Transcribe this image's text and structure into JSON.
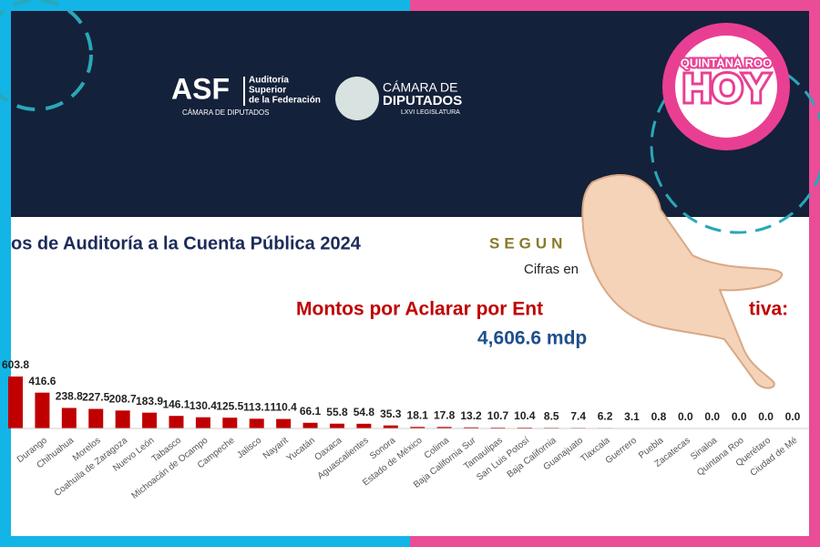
{
  "header": {
    "asf": "ASF",
    "asf_name": [
      "Auditoría",
      "Superior",
      "de la Federación"
    ],
    "asf_sub": "CÁMARA DE DIPUTADOS",
    "camara": [
      "CÁMARA DE",
      "DIPUTADOS"
    ],
    "legislatura": "LXVI LEGISLATURA"
  },
  "brand": {
    "line1": "QUINTANA ROO",
    "line2": "HOY"
  },
  "chart_data": {
    "type": "bar",
    "title": "os de Auditoría a la Cuenta Pública 2024",
    "title_tail": "SEGUN",
    "subtitle": "Cifras en",
    "heading": "Montos por Aclarar por Ent",
    "heading_tail": "tiva:",
    "total": "4,606.6 mdp",
    "categories": [
      null,
      "Durango",
      "Chihuahua",
      "Morelos",
      "Coahuila de Zaragoza",
      "Nuevo León",
      "Tabasco",
      "Michoacán de Ocampo",
      "Campeche",
      "Jalisco",
      "Nayarit",
      "Yucatán",
      "Oaxaca",
      "Aguascalientes",
      "Sonora",
      "Estado de México",
      "Colima",
      "Baja California Sur",
      "Tamaulipas",
      "San Luis Potosí",
      "Baja California",
      "Guanajuato",
      "Tlaxcala",
      "Guerrero",
      "Puebla",
      "Zacatecas",
      "Sinaloa",
      "Quintana Roo",
      "Querétaro",
      "Ciudad de Mé"
    ],
    "values": [
      603.8,
      416.6,
      238.8,
      227.5,
      208.7,
      183.9,
      146.1,
      130.4,
      125.5,
      113.1,
      110.4,
      66.1,
      55.8,
      54.8,
      35.3,
      18.1,
      17.8,
      13.2,
      10.7,
      10.4,
      8.5,
      7.4,
      6.2,
      3.1,
      0.8,
      0.0,
      0.0,
      0.0,
      0.0,
      0.0
    ],
    "value_labels": [
      "603.8",
      "416.6",
      "238.8",
      "227.5",
      "208.7",
      "183.9",
      "146.1",
      "130.4",
      "125.5",
      "113.1",
      "110.4",
      "66.1",
      "55.8",
      "54.8",
      "35.3",
      "18.1",
      "17.8",
      "13.2",
      "10.7",
      "10.4",
      "8.5",
      "7.4",
      "6.2",
      "3.1",
      "0.8",
      "0.0",
      "0.0",
      "0.0",
      "0.0",
      "0.0"
    ],
    "color": "#c00000"
  }
}
